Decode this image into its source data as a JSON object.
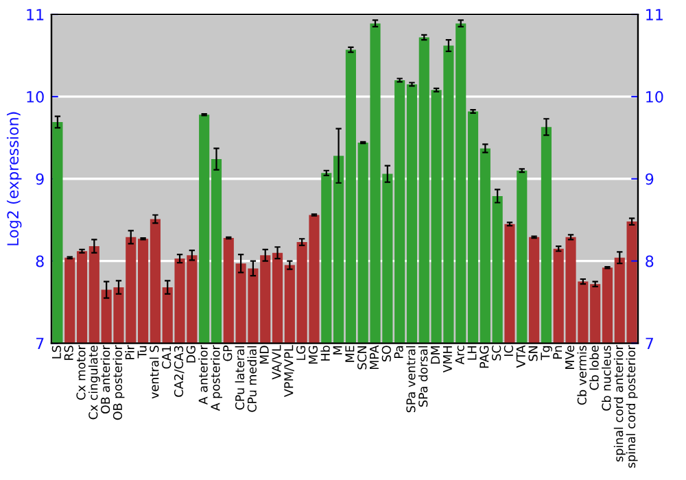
{
  "chart_data": {
    "type": "bar",
    "ylabel": "Log2 (expression)",
    "categories": [
      "LS",
      "RS",
      "Cx motor",
      "Cx cingulate",
      "OB anterior",
      "OB posterior",
      "Pir",
      "Tu",
      "ventral S",
      "CA1",
      "CA2/CA3",
      "DG",
      "A anterior",
      "A posterior",
      "GP",
      "CPu lateral",
      "CPu medial",
      "MD",
      "VA/VL",
      "VPM/VPL",
      "LG",
      "MG",
      "Hb",
      "M",
      "ME",
      "SCN",
      "MPA",
      "SO",
      "Pa",
      "SPa ventral",
      "SPa dorsal",
      "DM",
      "VMH",
      "Arc",
      "LH",
      "PAG",
      "SC",
      "IC",
      "VTA",
      "SN",
      "Tg",
      "Pn",
      "MVe",
      "Cb vermis",
      "Cb lobe",
      "Cb nucleus",
      "spinal cord anterior",
      "spinal cord posterior"
    ],
    "values": [
      9.69,
      8.04,
      8.12,
      8.18,
      7.65,
      7.68,
      8.29,
      8.27,
      8.51,
      7.68,
      8.03,
      8.07,
      9.78,
      9.24,
      8.28,
      7.97,
      7.91,
      8.07,
      8.1,
      7.95,
      8.23,
      8.56,
      9.07,
      9.28,
      10.57,
      9.44,
      10.89,
      9.06,
      10.2,
      10.15,
      10.72,
      10.08,
      10.62,
      10.89,
      9.82,
      9.37,
      8.79,
      8.45,
      9.1,
      8.29,
      9.63,
      8.15,
      8.29,
      7.75,
      7.72,
      7.92,
      8.04,
      8.48
    ],
    "errors": [
      0.07,
      0.01,
      0.02,
      0.08,
      0.1,
      0.08,
      0.08,
      0.01,
      0.05,
      0.08,
      0.05,
      0.06,
      0.01,
      0.13,
      0.01,
      0.11,
      0.09,
      0.07,
      0.07,
      0.05,
      0.04,
      0.01,
      0.03,
      0.33,
      0.03,
      0.01,
      0.04,
      0.1,
      0.02,
      0.02,
      0.03,
      0.02,
      0.07,
      0.04,
      0.02,
      0.05,
      0.08,
      0.02,
      0.02,
      0.01,
      0.1,
      0.03,
      0.03,
      0.03,
      0.03,
      0.01,
      0.07,
      0.04
    ],
    "colors": [
      "#33a033",
      "#b03232",
      "#b03232",
      "#b03232",
      "#b03232",
      "#b03232",
      "#b03232",
      "#b03232",
      "#b03232",
      "#b03232",
      "#b03232",
      "#b03232",
      "#33a033",
      "#33a033",
      "#b03232",
      "#b03232",
      "#b03232",
      "#b03232",
      "#b03232",
      "#b03232",
      "#b03232",
      "#b03232",
      "#33a033",
      "#33a033",
      "#33a033",
      "#33a033",
      "#33a033",
      "#33a033",
      "#33a033",
      "#33a033",
      "#33a033",
      "#33a033",
      "#33a033",
      "#33a033",
      "#33a033",
      "#33a033",
      "#33a033",
      "#b03232",
      "#33a033",
      "#b03232",
      "#33a033",
      "#b03232",
      "#b03232",
      "#b03232",
      "#b03232",
      "#b03232",
      "#b03232",
      "#b03232"
    ],
    "ylim": [
      7,
      11
    ],
    "yticks": [
      7,
      8,
      9,
      10,
      11
    ],
    "y2lim": [
      7,
      11
    ],
    "y2ticks": [
      7,
      8,
      9,
      10,
      11
    ],
    "grid": "y"
  }
}
